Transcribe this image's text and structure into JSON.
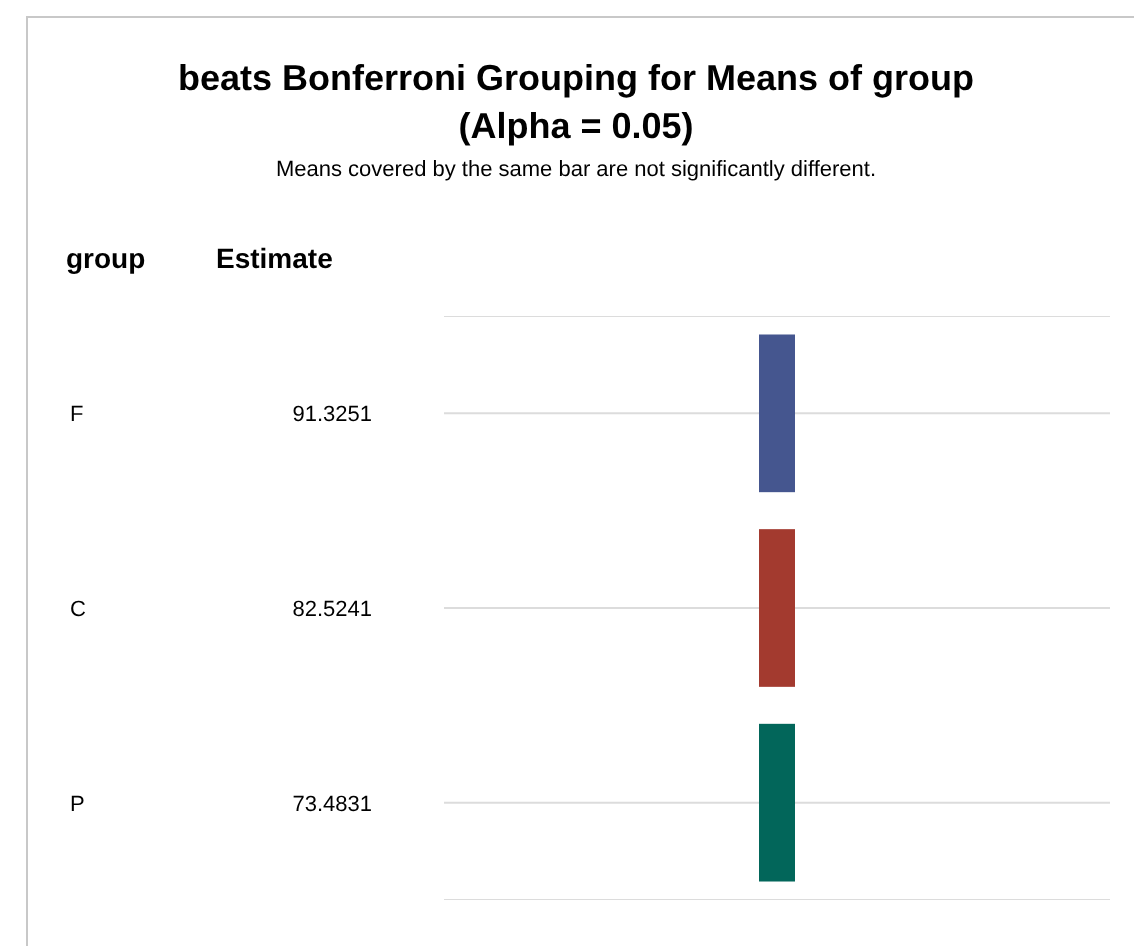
{
  "chart_data": {
    "type": "other",
    "title": "beats Bonferroni Grouping for Means of group (Alpha = 0.05)",
    "subtitle": "Means covered by the same bar are not significantly different.",
    "ylabel": "group",
    "xlabel": "Estimate",
    "categories": [
      "F",
      "C",
      "P"
    ],
    "values": [
      91.3251,
      82.5241,
      73.4831
    ],
    "colors": [
      "#45568f",
      "#a33a2f",
      "#02665a"
    ],
    "data_labels": true
  }
}
